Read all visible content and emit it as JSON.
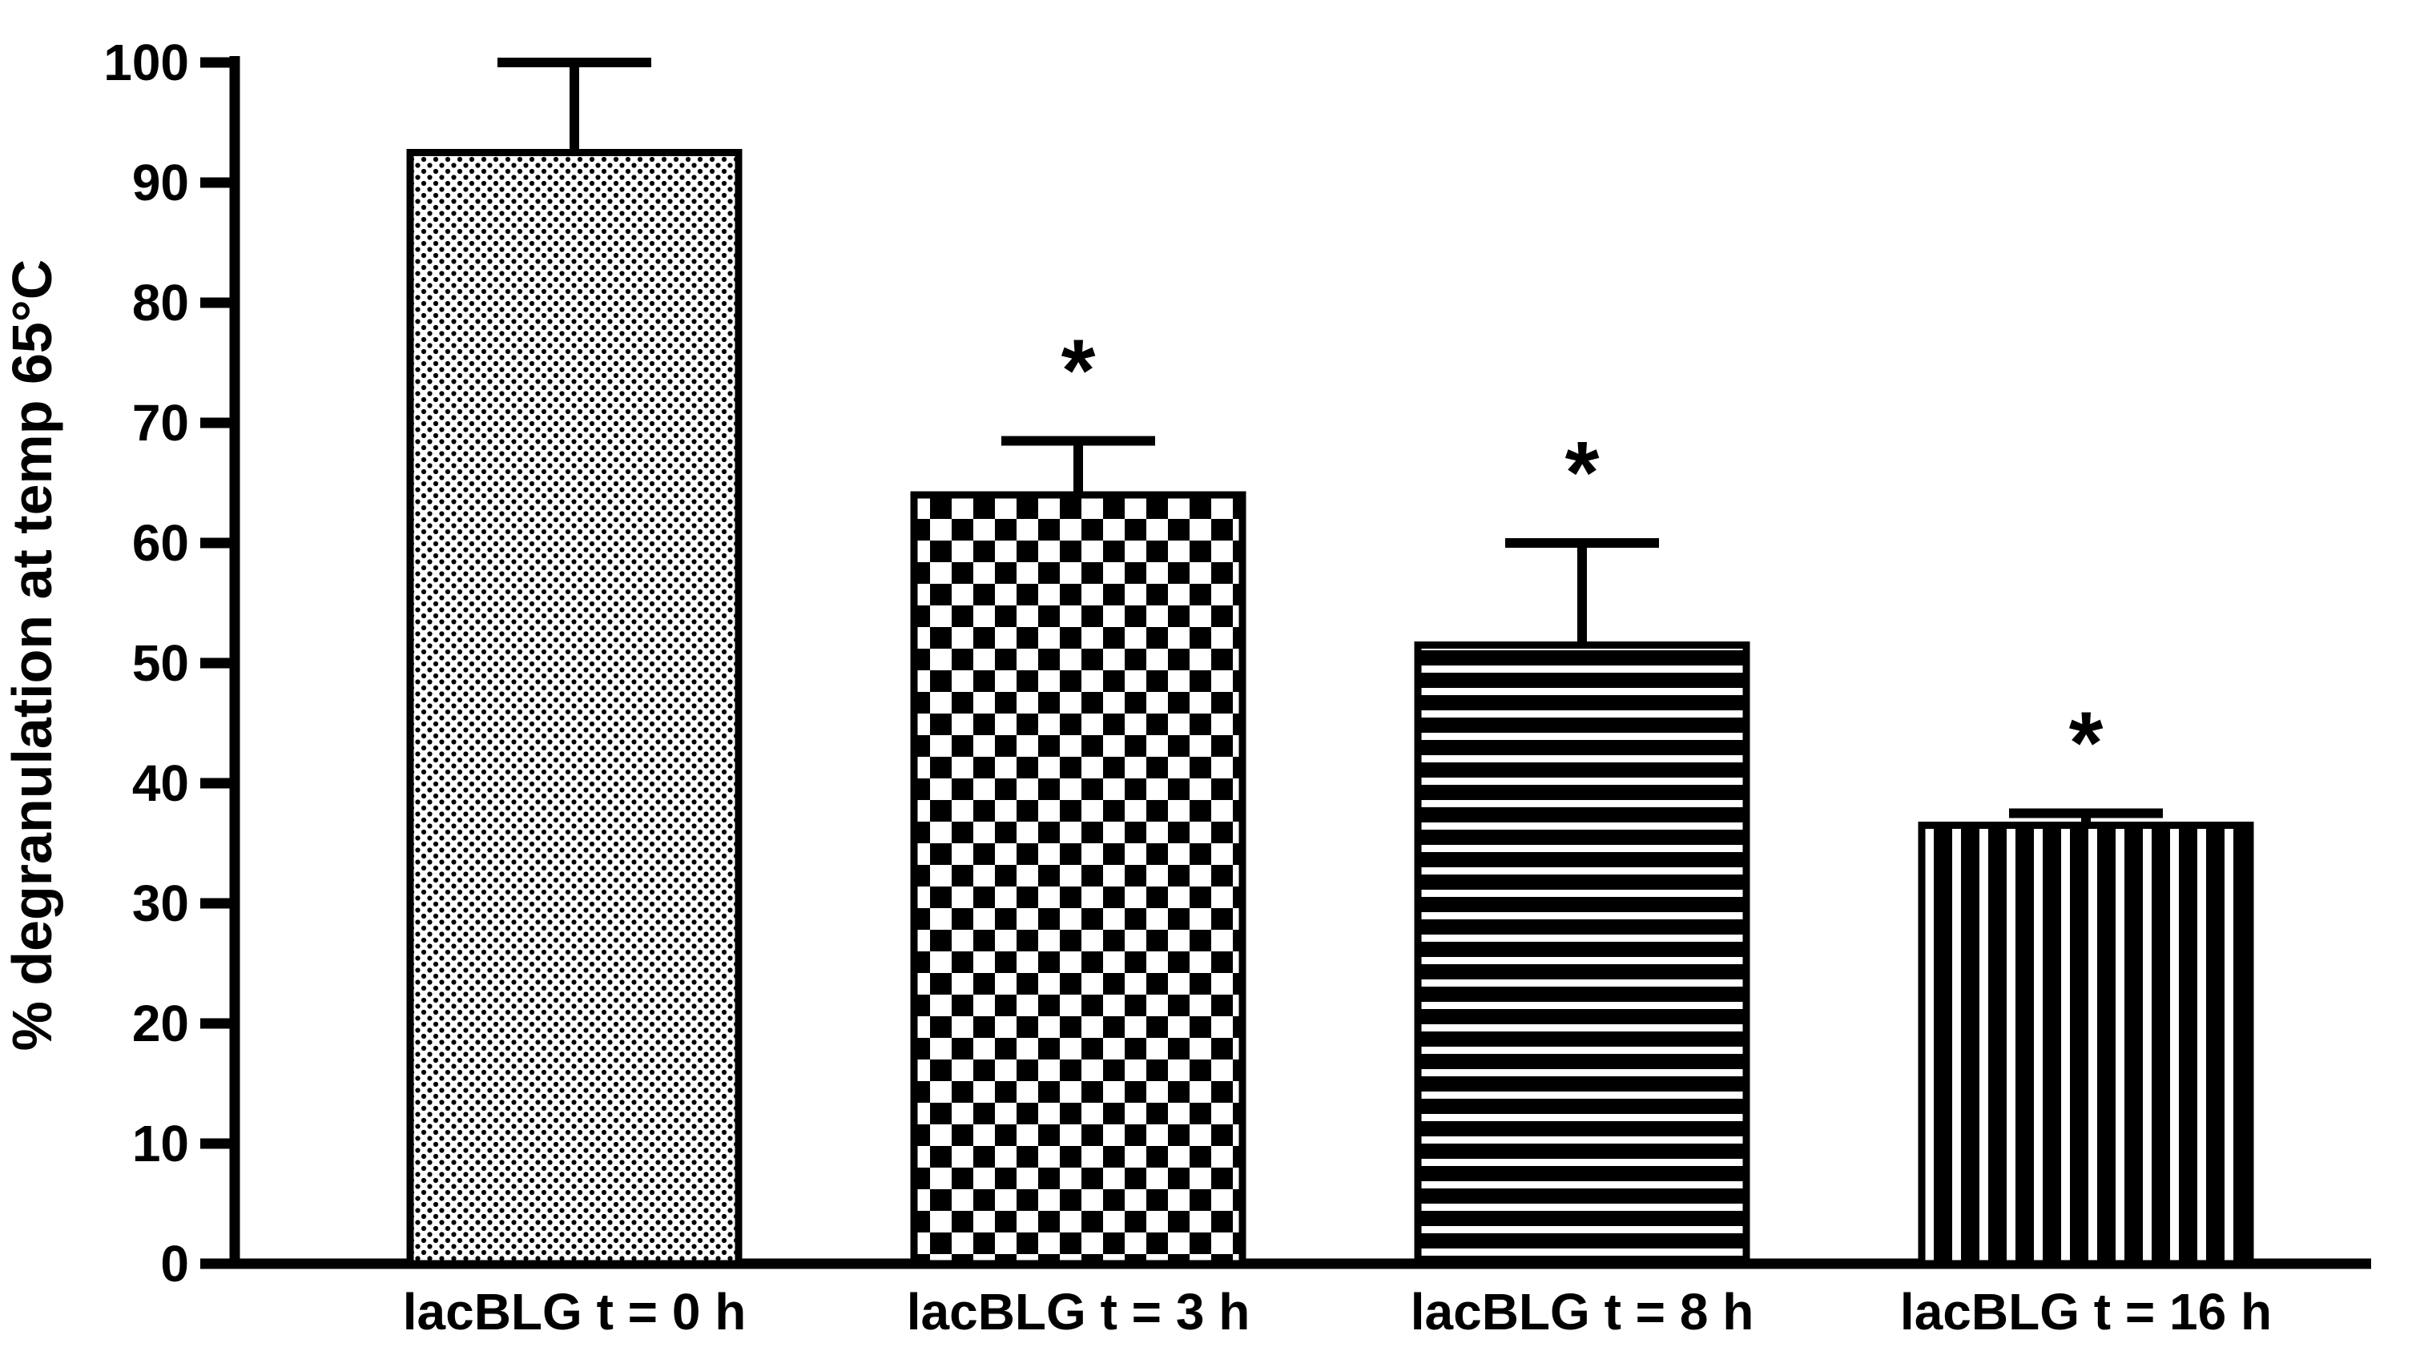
{
  "figure": {
    "background": "#ffffff"
  },
  "chart_data": {
    "type": "bar",
    "title": "",
    "xlabel": "",
    "ylabel": "% degranulation at temp 65°C",
    "ylim": [
      0,
      100
    ],
    "ytick_step": 10,
    "yticks": [
      0,
      10,
      20,
      30,
      40,
      50,
      60,
      70,
      80,
      90,
      100
    ],
    "grid": false,
    "legend": "none",
    "categories": [
      "lacBLG t = 0 h",
      "lacBLG t = 3 h",
      "lacBLG t = 8 h",
      "lacBLG t = 16 h"
    ],
    "values": [
      92.5,
      64,
      51.5,
      36.5
    ],
    "errors_upper": [
      7.5,
      4.5,
      8.5,
      1
    ],
    "significance": [
      "",
      "*",
      "*",
      "*"
    ],
    "bar_patterns": [
      "dots",
      "checkerboard",
      "horizontal-stripes",
      "vertical-stripes"
    ],
    "bar_fill_color": "#000000",
    "bar_background_color": "#ffffff",
    "axis_color": "#000000",
    "error_bar_style": "upper-cap"
  }
}
